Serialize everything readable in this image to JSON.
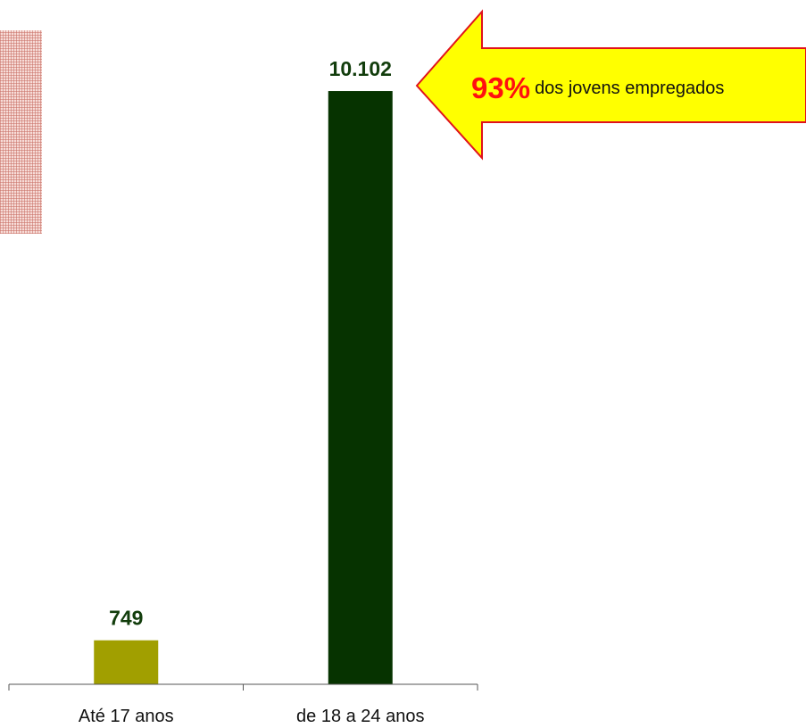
{
  "colors": {
    "bar_1": "#a19f00",
    "bar_2": "#063300",
    "value_label": "#123d0c",
    "axis": "#555555",
    "callout_fill": "#ffff00",
    "callout_stroke": "#e0121b",
    "callout_highlight": "#ff1010"
  },
  "callout": {
    "percent": "93%",
    "text": "dos jovens empregados"
  },
  "chart_data": {
    "type": "bar",
    "title": "",
    "xlabel": "",
    "ylabel": "",
    "categories": [
      "Até 17 anos",
      "de 18 a 24 anos"
    ],
    "values": [
      749,
      10102
    ],
    "data_labels": [
      "749",
      "10.102"
    ],
    "ylim": [
      0,
      10300
    ],
    "grid": false,
    "legend": "none"
  }
}
